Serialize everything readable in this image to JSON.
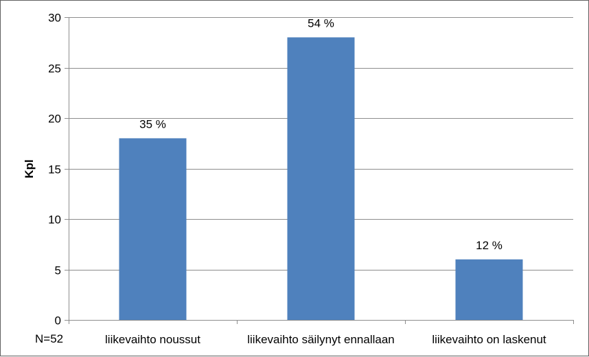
{
  "chart_data": {
    "type": "bar",
    "categories": [
      "liikevaihto noussut",
      "liikevaihto säilynyt ennallaan",
      "liikevaihto on laskenut"
    ],
    "values": [
      18,
      28,
      6
    ],
    "data_labels": [
      "35 %",
      "54 %",
      "12 %"
    ],
    "title": "",
    "xlabel": "",
    "ylabel": "Kpl",
    "ylim": [
      0,
      30
    ],
    "yticks": [
      0,
      5,
      10,
      15,
      20,
      25,
      30
    ],
    "grid": true,
    "legend": "none",
    "bar_color": "#4f81bd",
    "gridline_color": "#8c8c8c"
  },
  "note": "N=52"
}
